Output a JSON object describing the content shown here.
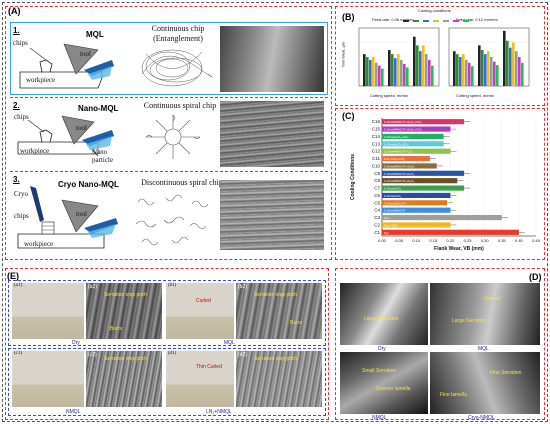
{
  "panels": {
    "a": {
      "label": "(A)"
    },
    "b": {
      "label": "(B)"
    },
    "c": {
      "label": "(C)"
    },
    "d": {
      "label": "(D)"
    },
    "e": {
      "label": "(E)"
    }
  },
  "panel_a": {
    "rows": [
      {
        "step": "1.",
        "method": "MQL",
        "chip_title": "Continuous chip",
        "chip_sub": "(Entanglement)",
        "labels": [
          "chips",
          "tool",
          "workpiece"
        ]
      },
      {
        "step": "2.",
        "method": "Nano-MQL",
        "chip_title": "Continuous spiral chip",
        "chip_sub": "",
        "labels": [
          "chips",
          "tool",
          "workpiece",
          "Nano",
          "particle"
        ]
      },
      {
        "step": "3.",
        "method": "Cryo Nano-MQL",
        "chip_title": "Discontinuous spiral chip",
        "chip_sub": "",
        "labels": [
          "Cryo",
          "chips",
          "tool",
          "workpiece"
        ]
      }
    ]
  },
  "panel_b": {
    "left_title": "Feed rate: 0.06 mm/rev",
    "right_title": "Feed rate: 0.12 mm/rev",
    "xlabel": "Cutting speed, m/min",
    "ylabel": "Tool Wear, μm",
    "legend_title": "Cooling conditions"
  },
  "chart_data": {
    "type": "bar",
    "orientation": "horizontal",
    "xlabel": "Flank Wear, VB (mm)",
    "ylabel": "Cooling Conditions",
    "xlim": [
      0,
      0.45
    ],
    "xticks": [
      "0.00",
      "0.05",
      "0.10",
      "0.15",
      "0.20",
      "0.25",
      "0.30",
      "0.35",
      "0.40",
      "0.45"
    ],
    "categories": [
      "C1",
      "C2",
      "C3",
      "C4",
      "C5",
      "C6",
      "C7",
      "C8",
      "C9",
      "C10",
      "C11",
      "C12",
      "C13",
      "C14",
      "C15",
      "C16"
    ],
    "category_labels": [
      "Dry",
      "Pure MQL",
      "CO₂",
      "0.1%wtMWCNT",
      "0.1%wtMWCNT+...",
      "0.1%wtAl₂O₃",
      "0.1%wtAl₂O₃",
      "0.1%wtMWCNT+Al₂O₃",
      "0.1%wtMWCNT+Al₂O₃",
      "0.1%wtMWCNT+Al₂O₃",
      "Pure MQL+CO₂",
      "0.1%wtMWCNT+CO₂",
      "0.1%wtAl₂O₃+CO₂",
      "0.1%wtAl₂O₃+CO₂",
      "0.1%wtMWCNT+Al₂O₃+CO₂",
      "0.1%wtMWCNT+Al₂O₃+CO₂"
    ],
    "values": [
      0.4,
      0.2,
      0.35,
      0.2,
      0.19,
      0.2,
      0.24,
      0.22,
      0.24,
      0.16,
      0.14,
      0.2,
      0.18,
      0.18,
      0.2,
      0.24
    ],
    "colors": [
      "#e8392b",
      "#f0b825",
      "#9e9e9e",
      "#3a8ee6",
      "#e07a1f",
      "#2a4aa8",
      "#3aa14a",
      "#6b4e2a",
      "#2a55a6",
      "#8a6d3b",
      "#e87040",
      "#8bc34a",
      "#5ec8e0",
      "#20b060",
      "#b03ac0",
      "#e0306a"
    ]
  },
  "panel_d": {
    "captions": [
      "Dry",
      "MQL",
      "NMQL",
      "Cryo-NMQL"
    ],
    "annotations": [
      "Large Serration",
      "Uneven",
      "Large Serration",
      "Small Serration",
      "Uneven lamella",
      "Fine lamella",
      "Fine Serration"
    ]
  },
  "panel_e": {
    "photo_captions": [
      "Dry",
      "MQL",
      "NMQL",
      "LN₂+NMQL"
    ],
    "sem_labels": [
      "(a1)",
      "(a2)",
      "(b1)",
      "(b2)",
      "(c1)",
      "(c2)",
      "(d1)",
      "(d2)"
    ],
    "annotations": [
      "Serration step pitch",
      "Burrs",
      "Curled",
      "Thin Curled",
      "Irregular"
    ]
  }
}
